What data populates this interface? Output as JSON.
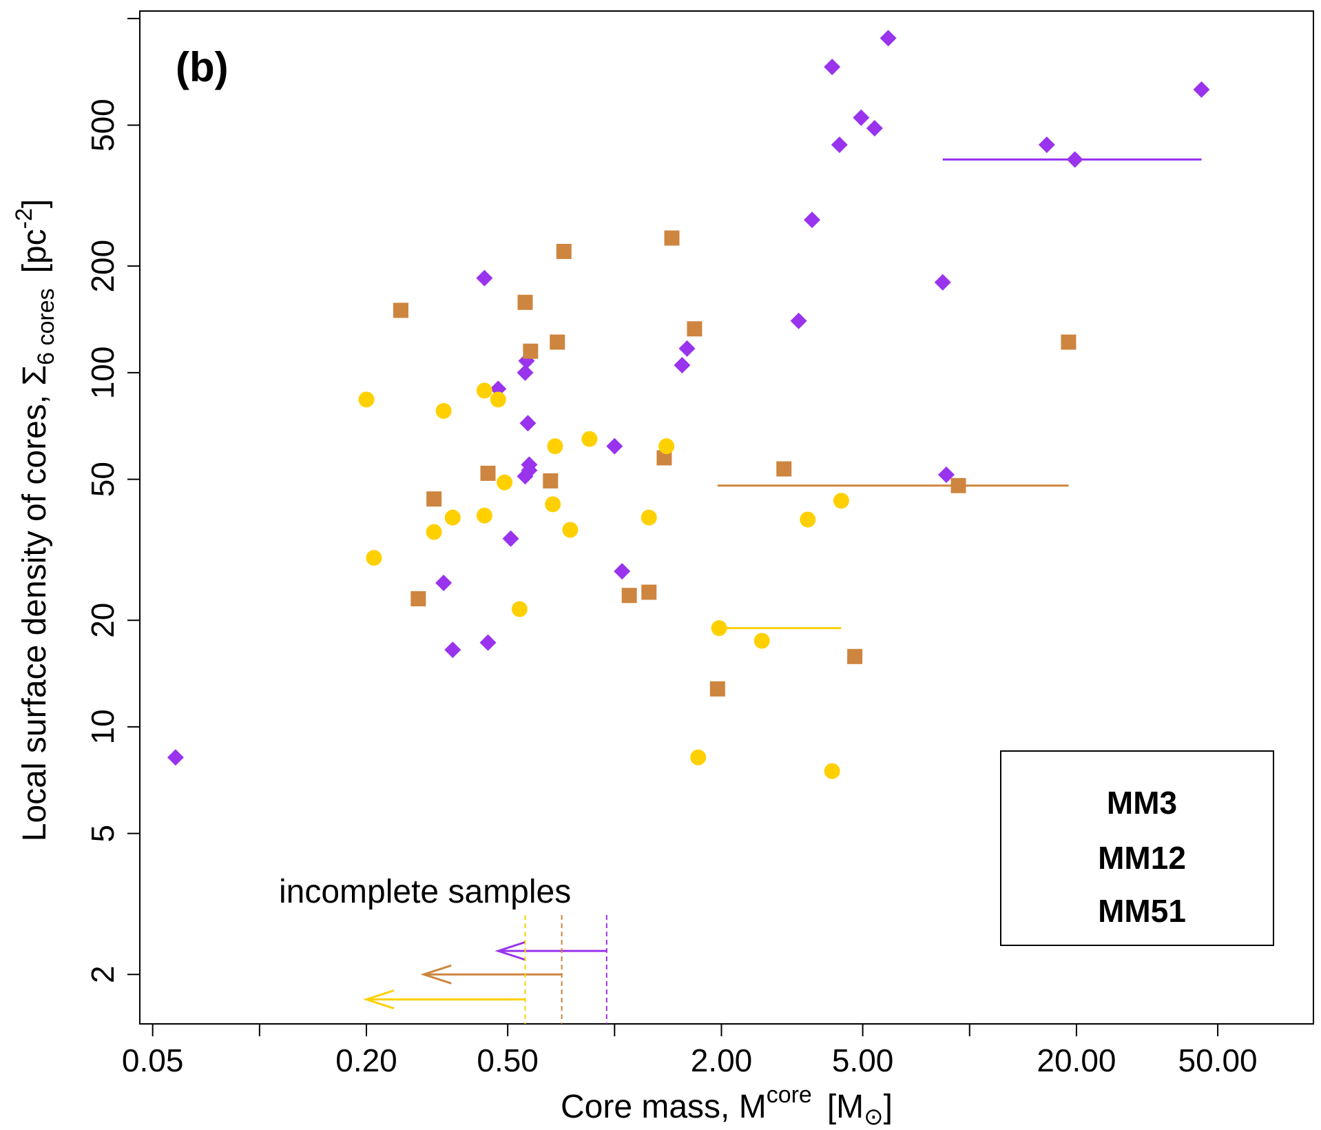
{
  "chart_data": {
    "type": "scatter",
    "panel_label": "(b)",
    "xlabel": {
      "prefix": "Core mass, M",
      "sup": "core",
      "unit_open": "[M",
      "sun_symbol": "⊙",
      "unit_close": "]"
    },
    "ylabel": {
      "prefix": "Local surface density of cores, Σ",
      "sub": "6 cores",
      "unit_open": "[pc",
      "sup": "-2",
      "unit_close": "]"
    },
    "x_scale": "log",
    "y_scale": "log",
    "xlim": [
      0.046,
      93
    ],
    "ylim": [
      1.45,
      1050
    ],
    "x_ticks": [
      0.05,
      0.1,
      0.2,
      0.5,
      1,
      2,
      5,
      10,
      20,
      50
    ],
    "x_tick_labels": [
      "0.05",
      "",
      "0.20",
      "0.50",
      "",
      "2.00",
      "5.00",
      "",
      "20.00",
      "50.00"
    ],
    "y_ticks": [
      2,
      5,
      10,
      20,
      50,
      100,
      200,
      500,
      1000
    ],
    "y_tick_labels": [
      "2",
      "5",
      "10",
      "20",
      "50",
      "100",
      "200",
      "500",
      ""
    ],
    "legend_position": "bottom-right",
    "series": [
      {
        "name": "MM3",
        "color": "#9933ee",
        "marker": "diamond",
        "points": [
          [
            0.058,
            8.2
          ],
          [
            0.33,
            25.5
          ],
          [
            0.35,
            16.5
          ],
          [
            0.43,
            185
          ],
          [
            0.44,
            17.3
          ],
          [
            0.47,
            90
          ],
          [
            0.51,
            34
          ],
          [
            0.56,
            51
          ],
          [
            0.56,
            100
          ],
          [
            0.565,
            108
          ],
          [
            0.57,
            72
          ],
          [
            0.575,
            55
          ],
          [
            0.575,
            53
          ],
          [
            1.0,
            62
          ],
          [
            1.05,
            27.5
          ],
          [
            1.55,
            105
          ],
          [
            1.6,
            117
          ],
          [
            3.3,
            140
          ],
          [
            3.6,
            270
          ],
          [
            4.1,
            730
          ],
          [
            4.3,
            440
          ],
          [
            4.95,
            525
          ],
          [
            5.4,
            490
          ],
          [
            5.9,
            880
          ],
          [
            8.4,
            180
          ],
          [
            8.6,
            51.5
          ],
          [
            16.5,
            440
          ],
          [
            19.8,
            400
          ],
          [
            45,
            630
          ]
        ],
        "error_bar": {
          "y": 400,
          "x_from": 8.4,
          "x_to": 45
        }
      },
      {
        "name": "MM12",
        "color": "#cd853f",
        "marker": "square",
        "points": [
          [
            0.25,
            150
          ],
          [
            0.28,
            23
          ],
          [
            0.31,
            44
          ],
          [
            0.44,
            52
          ],
          [
            0.56,
            158
          ],
          [
            0.58,
            115
          ],
          [
            0.66,
            49.5
          ],
          [
            0.69,
            122
          ],
          [
            0.72,
            220
          ],
          [
            1.1,
            23.5
          ],
          [
            1.25,
            24
          ],
          [
            1.38,
            57.5
          ],
          [
            1.45,
            240
          ],
          [
            1.68,
            133
          ],
          [
            1.95,
            12.8
          ],
          [
            3.0,
            53.5
          ],
          [
            4.75,
            15.8
          ],
          [
            9.3,
            48
          ],
          [
            19.0,
            122
          ]
        ],
        "error_bar": {
          "y": 48,
          "x_from": 1.95,
          "x_to": 19.0
        }
      },
      {
        "name": "MM51",
        "color": "#ffd000",
        "marker": "circle",
        "points": [
          [
            0.2,
            84
          ],
          [
            0.21,
            30
          ],
          [
            0.31,
            35.5
          ],
          [
            0.33,
            78
          ],
          [
            0.35,
            39
          ],
          [
            0.43,
            39.5
          ],
          [
            0.43,
            89
          ],
          [
            0.47,
            84
          ],
          [
            0.49,
            49
          ],
          [
            0.54,
            21.5
          ],
          [
            0.67,
            42.5
          ],
          [
            0.68,
            62
          ],
          [
            0.75,
            36
          ],
          [
            0.85,
            65
          ],
          [
            1.25,
            39
          ],
          [
            1.4,
            62
          ],
          [
            1.72,
            8.2
          ],
          [
            1.97,
            19
          ],
          [
            2.6,
            17.5
          ],
          [
            3.5,
            38.5
          ],
          [
            4.1,
            7.5
          ],
          [
            4.35,
            43.5
          ]
        ],
        "error_bar": {
          "y": 19,
          "x_from": 1.97,
          "x_to": 4.35
        }
      }
    ],
    "annotation": {
      "text": "incomplete samples",
      "limits": [
        {
          "series": "MM3",
          "color": "#9933ee",
          "x_limit": 0.95,
          "arrow_to": 0.47,
          "y": 2.33
        },
        {
          "series": "MM12",
          "color": "#cd853f",
          "x_limit": 0.71,
          "arrow_to": 0.29,
          "y": 2.0
        },
        {
          "series": "MM51",
          "color": "#ffd000",
          "x_limit": 0.56,
          "arrow_to": 0.2,
          "y": 1.7
        }
      ]
    },
    "legend": [
      {
        "label": "MM3",
        "color": "#9933ee"
      },
      {
        "label": "MM12",
        "color": "#cd853f"
      },
      {
        "label": "MM51",
        "color": "#ffd000"
      }
    ]
  }
}
